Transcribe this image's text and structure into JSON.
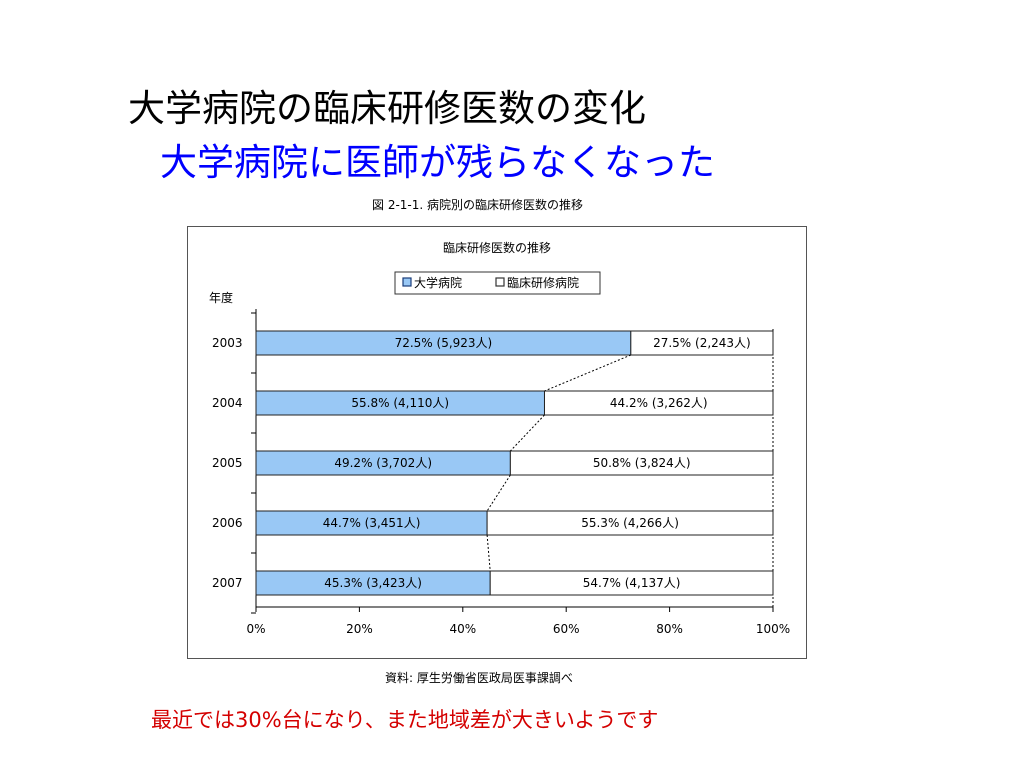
{
  "slide": {
    "title": "大学病院の臨床研修医数の変化",
    "subtitle": "大学病院に医師が残らなくなった",
    "figure_caption": "図 2-1-1.  病院別の臨床研修医数の推移",
    "source": "資料:  厚生労働省医政局医事課調べ",
    "footnote": "最近では30%台になり、また地域差が大きいようです"
  },
  "chart_data": {
    "type": "bar",
    "stacked": true,
    "orientation": "horizontal",
    "title": "臨床研修医数の推移",
    "ylabel": "年度",
    "categories": [
      "2003",
      "2004",
      "2005",
      "2006",
      "2007"
    ],
    "series": [
      {
        "name": "大学病院",
        "color": "#99c8f5",
        "values": [
          72.5,
          55.8,
          49.2,
          44.7,
          45.3
        ],
        "labels": [
          "72.5% (5,923人)",
          "55.8% (4,110人)",
          "49.2% (3,702人)",
          "44.7% (3,451人)",
          "45.3% (3,423人)"
        ]
      },
      {
        "name": "臨床研修病院",
        "color": "#ffffff",
        "values": [
          27.5,
          44.2,
          50.8,
          55.3,
          54.7
        ],
        "labels": [
          "27.5% (2,243人)",
          "44.2% (3,262人)",
          "50.8% (3,824人)",
          "55.3% (4,266人)",
          "54.7% (4,137人)"
        ]
      }
    ],
    "x_ticks": [
      "0%",
      "20%",
      "40%",
      "60%",
      "80%",
      "100%"
    ],
    "xlim": [
      0,
      100
    ],
    "legend": "top-center",
    "grid": false
  }
}
